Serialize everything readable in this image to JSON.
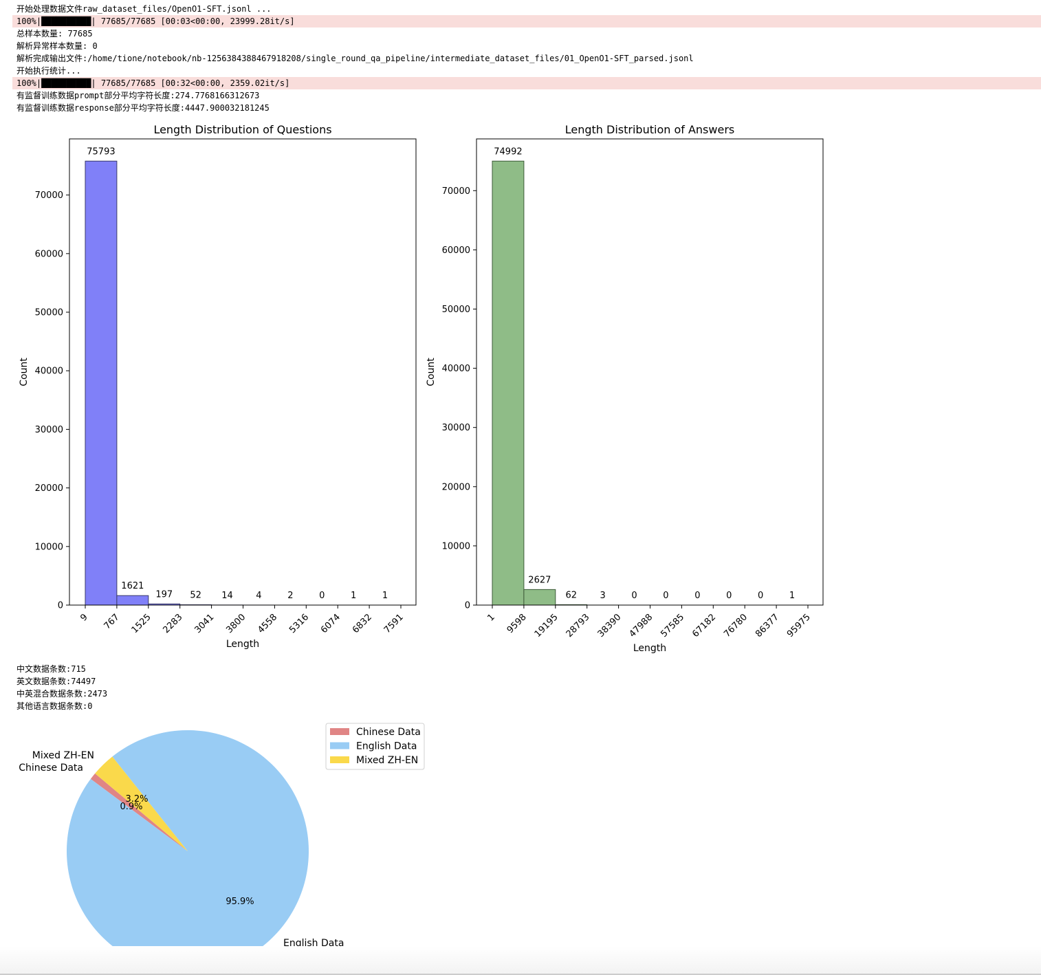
{
  "output_log": [
    {
      "text": "开始处理数据文件raw_dataset_files/OpenO1-SFT.jsonl ...",
      "stderr": false
    },
    {
      "text": "100%|██████████| 77685/77685 [00:03<00:00, 23999.28it/s]",
      "stderr": true
    },
    {
      "text": "总样本数量: 77685",
      "stderr": false
    },
    {
      "text": "解析异常样本数量: 0",
      "stderr": false
    },
    {
      "text": "解析完成输出文件:/home/tione/notebook/nb-1256384388467918208/single_round_qa_pipeline/intermediate_dataset_files/01_OpenO1-SFT_parsed.jsonl",
      "stderr": false
    },
    {
      "text": "开始执行统计...",
      "stderr": false
    },
    {
      "text": "100%|██████████| 77685/77685 [00:32<00:00, 2359.02it/s]",
      "stderr": true
    },
    {
      "text": "有监督训练数据prompt部分平均字符长度:274.7768166312673",
      "stderr": false
    },
    {
      "text": "有监督训练数据response部分平均字符长度:4447.900032181245",
      "stderr": false
    }
  ],
  "language_log": [
    {
      "text": "中文数据条数:715"
    },
    {
      "text": "英文数据条数:74497"
    },
    {
      "text": "中英混合数据条数:2473"
    },
    {
      "text": "其他语言数据条数:0"
    }
  ],
  "chart_data": [
    {
      "type": "bar",
      "title": "Length Distribution of Questions",
      "xlabel": "Length",
      "ylabel": "Count",
      "bin_edges": [
        9,
        767,
        1525,
        2283,
        3041,
        3800,
        4558,
        5316,
        6074,
        6832,
        7591
      ],
      "x_tick_labels": [
        "9",
        "767",
        "1525",
        "2283",
        "3041",
        "3800",
        "4558",
        "5316",
        "6074",
        "6832",
        "7591"
      ],
      "values": [
        75793,
        1621,
        197,
        52,
        14,
        4,
        2,
        0,
        1,
        1
      ],
      "y_ticks": [
        0,
        10000,
        20000,
        30000,
        40000,
        50000,
        60000,
        70000
      ],
      "ylim": [
        0,
        79582
      ],
      "bar_color": "#8080f8",
      "edge_color": "#3a3a6a",
      "grid": false
    },
    {
      "type": "bar",
      "title": "Length Distribution of Answers",
      "xlabel": "Length",
      "ylabel": "Count",
      "bin_edges": [
        1,
        9598,
        19195,
        28793,
        38390,
        47988,
        57585,
        67182,
        76780,
        86377,
        95975
      ],
      "x_tick_labels": [
        "1",
        "9598",
        "19195",
        "28793",
        "38390",
        "47988",
        "57585",
        "67182",
        "76780",
        "86377",
        "95975"
      ],
      "values": [
        74992,
        2627,
        62,
        3,
        0,
        0,
        0,
        0,
        0,
        1
      ],
      "y_ticks": [
        0,
        10000,
        20000,
        30000,
        40000,
        50000,
        60000,
        70000
      ],
      "ylim": [
        0,
        78742
      ],
      "bar_color": "#8fbc87",
      "edge_color": "#3c5a38",
      "grid": false
    },
    {
      "type": "pie",
      "slices": [
        {
          "name": "Chinese Data",
          "value": 715,
          "pct_label": "0.9%",
          "color": "#e08585"
        },
        {
          "name": "English Data",
          "value": 74497,
          "pct_label": "95.9%",
          "color": "#99ccf4"
        },
        {
          "name": "Mixed ZH-EN",
          "value": 2473,
          "pct_label": "3.2%",
          "color": "#fad94b"
        }
      ],
      "start_angle_deg": 140,
      "legend": {
        "placement": "upper-right",
        "entries": [
          "Chinese Data",
          "English Data",
          "Mixed ZH-EN"
        ]
      }
    }
  ]
}
